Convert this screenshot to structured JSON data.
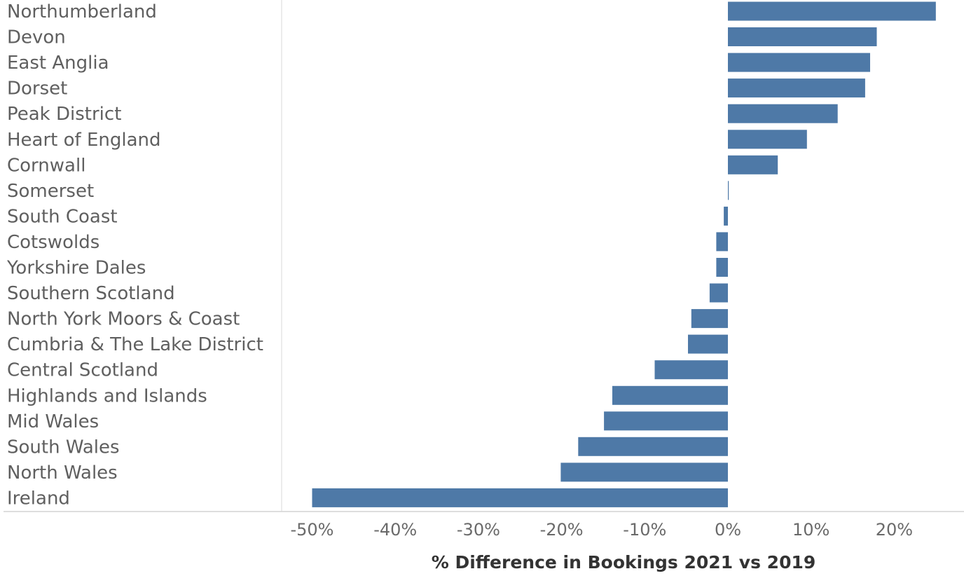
{
  "chart_data": {
    "type": "bar",
    "orientation": "horizontal",
    "title": "",
    "xlabel": "% Difference in Bookings 2021 vs 2019",
    "ylabel": "",
    "xlim": [
      -54,
      28
    ],
    "x_ticks": [
      -50,
      -40,
      -30,
      -20,
      -10,
      0,
      10,
      20
    ],
    "x_tick_labels": [
      "-50%",
      "-40%",
      "-30%",
      "-20%",
      "-10%",
      "0%",
      "10%",
      "20%"
    ],
    "grid": false,
    "bar_color": "#4e79a7",
    "categories": [
      "Northumberland",
      "Devon",
      "East Anglia",
      "Dorset",
      "Peak District",
      "Heart of England",
      "Cornwall",
      "Somerset",
      "South Coast",
      "Cotswolds",
      "Yorkshire Dales",
      "Southern Scotland",
      "North York Moors & Coast",
      "Cumbria & The Lake District",
      "Central Scotland",
      "Highlands and Islands",
      "Mid Wales",
      "South Wales",
      "North Wales",
      "Ireland"
    ],
    "values": [
      25.0,
      17.9,
      17.1,
      16.5,
      13.2,
      9.5,
      6.0,
      0.1,
      -0.5,
      -1.4,
      -1.4,
      -2.2,
      -4.4,
      -4.8,
      -8.8,
      -13.9,
      -14.9,
      -18.0,
      -20.1,
      -50.0
    ]
  }
}
